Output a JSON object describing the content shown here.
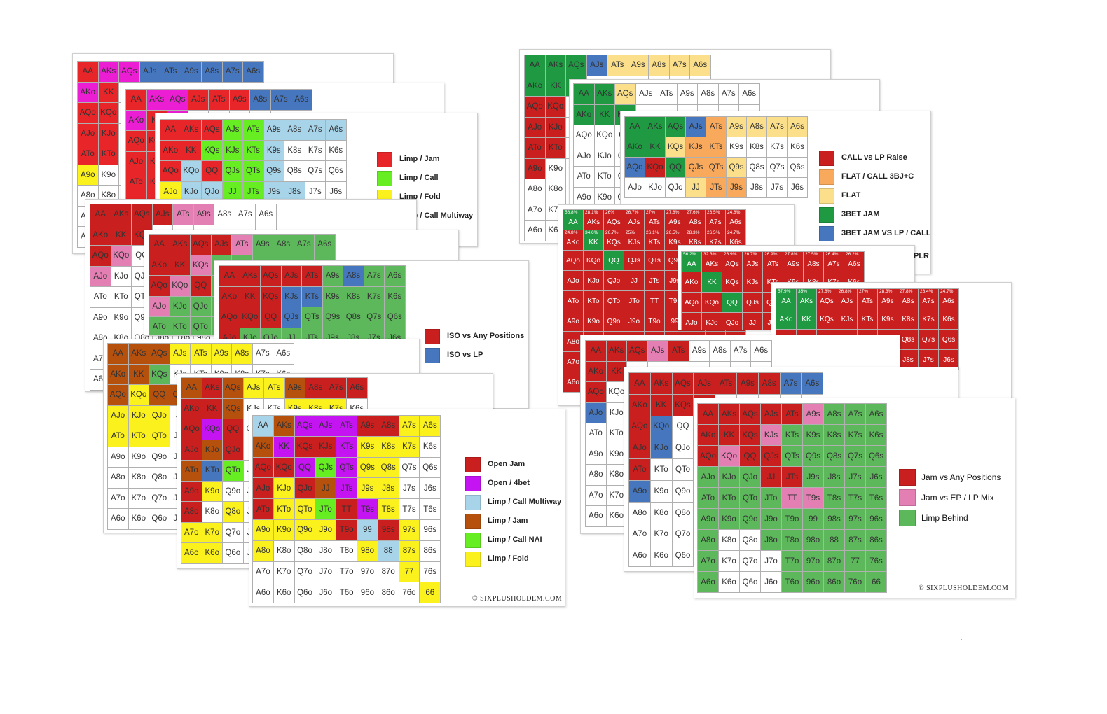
{
  "colors": {
    "red": "#e8262a",
    "magenta": "#ec1ed4",
    "blue": "#4676bd",
    "lightblue": "#a8d4ea",
    "lime": "#66ee22",
    "yellow": "#fbf11c",
    "brown": "#b5500d",
    "purple": "#c414f2",
    "green": "#5db75b",
    "pink": "#e37fb3",
    "darkred": "#c91f1f",
    "orange": "#f8a95c",
    "paleyellow": "#fbdf8a",
    "darkgreen": "#1f9a42",
    "white": "#ffffff"
  },
  "legends": {
    "limp_chart": [
      "Limp / Jam",
      "Limp / Call",
      "Limp / Fold",
      "Limp / Call Multiway"
    ],
    "iso_chart": [
      "ISO vs Any Positions",
      "ISO vs LP"
    ],
    "open_chart": [
      "Open Jam",
      "Open / 4bet",
      "Limp / Call Multiway",
      "Limp / Jam",
      "Limp / Call NAI",
      "Limp / Fold"
    ],
    "call_chart": [
      "CALL vs LP Raise",
      "FLAT / CALL 3BJ+C",
      "FLAT",
      "3BET JAM",
      "3BET JAM VS LP / CALL VS EP"
    ],
    "jam_chart": [
      "Jam vs Any Positions",
      "Jam vs EP / LP Mix",
      "Limp Behind"
    ]
  },
  "legend_colors": {
    "limp_chart": [
      "red",
      "lime",
      "yellow",
      "lightblue"
    ],
    "iso_chart": [
      "darkred",
      "blue"
    ],
    "open_chart": [
      "darkred",
      "purple",
      "lightblue",
      "brown",
      "lime",
      "yellow"
    ],
    "call_chart": [
      "darkred",
      "orange",
      "paleyellow",
      "darkgreen",
      "blue"
    ],
    "jam_chart": [
      "darkred",
      "pink",
      "green"
    ]
  },
  "brand": "© SIXPLUSHOLDEM.COM",
  "partial_text": "PLR",
  "hands": {
    "row0": [
      "AA",
      "AKs",
      "AQs",
      "AJs",
      "ATs",
      "A9s",
      "A8s",
      "A7s",
      "A6s"
    ],
    "row1": [
      "AKo",
      "KK",
      "KQs",
      "KJs",
      "KTs",
      "K9s",
      "K8s",
      "K7s",
      "K6s"
    ],
    "row2": [
      "AQo",
      "KQo",
      "QQ",
      "QJs",
      "QTs",
      "Q9s",
      "Q8s",
      "Q7s",
      "Q6s"
    ],
    "row3": [
      "AJo",
      "KJo",
      "QJo",
      "JJ",
      "JTs",
      "J9s",
      "J8s",
      "J7s",
      "J6s"
    ],
    "row4": [
      "ATo",
      "KTo",
      "QTo",
      "JTo",
      "TT",
      "T9s",
      "T8s",
      "T7s",
      "T6s"
    ],
    "row5": [
      "A9o",
      "K9o",
      "Q9o",
      "J9o",
      "T9o",
      "99",
      "98s",
      "97s",
      "96s"
    ],
    "row6": [
      "A8o",
      "K8o",
      "Q8o",
      "J8o",
      "T8o",
      "98o",
      "88",
      "87s",
      "86s"
    ],
    "row7": [
      "A7o",
      "K7o",
      "Q7o",
      "J7o",
      "T7o",
      "97o",
      "87o",
      "77",
      "76s"
    ],
    "row8": [
      "A6o",
      "K6o",
      "Q6o",
      "J6o",
      "T6o",
      "96o",
      "86o",
      "76o",
      "66"
    ]
  },
  "percent_row0": [
    "56.8%",
    "28.1%",
    "26%",
    "26.7%",
    "27%",
    "27.8%",
    "27.6%",
    "26.5%",
    "24.8%"
  ],
  "percent_row1": [
    "24.8%",
    "34.6%",
    "26.7%",
    "25%",
    "26.1%",
    "26.5%",
    "28.3%",
    "26.5%",
    "24.7%"
  ],
  "percent_row0_b": [
    "57.9%",
    "35%",
    "27.8%",
    "26.8%",
    "27%",
    "28.3%",
    "27.8%",
    "26.4%",
    "24.7%"
  ],
  "percent_row0_c": [
    "56.2%",
    "32.3%",
    "26.9%",
    "26.7%",
    "26.9%",
    "27.8%",
    "27.5%",
    "26.4%",
    "26.2%"
  ]
}
